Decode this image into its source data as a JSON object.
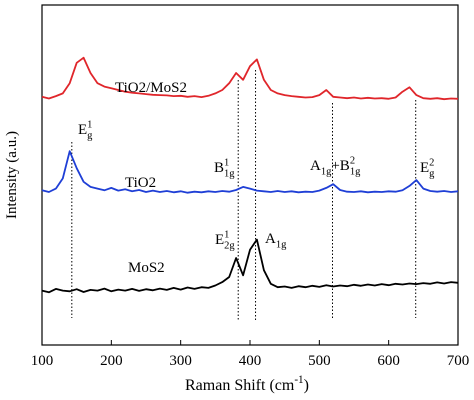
{
  "chart_data": {
    "type": "line",
    "x_label": [
      {
        "text": "Raman Shift (cm"
      },
      {
        "text": "-1",
        "shift": "sup"
      },
      {
        "text": ")"
      }
    ],
    "y_label": "Intensity (a.u.)",
    "x": [
      100,
      110,
      120,
      130,
      140,
      150,
      160,
      170,
      180,
      190,
      200,
      210,
      220,
      230,
      240,
      250,
      260,
      270,
      280,
      290,
      300,
      310,
      320,
      330,
      340,
      350,
      360,
      370,
      380,
      390,
      400,
      410,
      420,
      430,
      440,
      450,
      460,
      470,
      480,
      490,
      500,
      510,
      520,
      530,
      540,
      550,
      560,
      570,
      580,
      590,
      600,
      610,
      620,
      630,
      640,
      650,
      660,
      670,
      680,
      690,
      700
    ],
    "series": [
      {
        "name": "TiO2/MoS2",
        "color": "#e0262b",
        "values": [
          73,
          72.5,
          73.2,
          74,
          77,
          83,
          84.5,
          80,
          77,
          76,
          75.5,
          75,
          74.5,
          74.2,
          74,
          73.8,
          73.6,
          73.5,
          73.4,
          73.2,
          73.3,
          73,
          73.2,
          72.9,
          73.3,
          74,
          75,
          77,
          80,
          78,
          82,
          84,
          78,
          75,
          74,
          73.5,
          73.2,
          73,
          72.8,
          72.9,
          73.5,
          75,
          73,
          72.8,
          72.6,
          72.8,
          72.5,
          72.7,
          72.5,
          72.6,
          72.4,
          72.8,
          74.5,
          75.8,
          73.5,
          72.6,
          72.4,
          72.6,
          72.3,
          72.5,
          72.4
        ]
      },
      {
        "name": "TiO2",
        "color": "#1f3fd6",
        "values": [
          45.5,
          45,
          46,
          49,
          57,
          52,
          48,
          46.5,
          46,
          45.5,
          46.2,
          45.4,
          45.8,
          45.2,
          45.6,
          45,
          45.4,
          45,
          45.3,
          44.9,
          45.2,
          44.8,
          45.1,
          44.9,
          45.2,
          45,
          45.3,
          45.1,
          45.6,
          46.5,
          46,
          45.4,
          45.2,
          45,
          45.3,
          45,
          45.2,
          44.9,
          45.1,
          45,
          45.4,
          46.2,
          47.3,
          45.6,
          45.1,
          45,
          45.2,
          44.9,
          45.1,
          45,
          45.2,
          45.1,
          45.5,
          46.8,
          48.5,
          46,
          45.3,
          45.1,
          45.3,
          45,
          45.2
        ]
      },
      {
        "name": "MoS2",
        "color": "#000000",
        "values": [
          16,
          15.5,
          16.5,
          16,
          15.8,
          16.4,
          15.6,
          16.2,
          16,
          16.6,
          15.8,
          16.3,
          16,
          16.5,
          15.9,
          16.4,
          16.1,
          16.6,
          16.2,
          16.8,
          16.3,
          16.9,
          16.5,
          17,
          16.8,
          17.5,
          18.5,
          20,
          25.6,
          20.5,
          28,
          31,
          22,
          18,
          17,
          17.2,
          16.8,
          17.3,
          17,
          17.4,
          17.1,
          17.6,
          17.2,
          17.5,
          17.3,
          17.7,
          17.4,
          17.8,
          17.5,
          17.9,
          17.6,
          18,
          17.8,
          18.1,
          17.9,
          18.2,
          18,
          18.4,
          18.1,
          18.5,
          18.3
        ]
      }
    ],
    "xlim": [
      100,
      700
    ],
    "xticks": [
      100,
      200,
      300,
      400,
      500,
      600,
      700
    ],
    "ylim": [
      0,
      100
    ],
    "reference_lines": [
      143,
      383,
      408,
      519,
      639
    ],
    "annotations": [
      [
        {
          "text": "E"
        },
        {
          "text": "g",
          "shift": "sub"
        },
        {
          "text": "1",
          "shift": "sup"
        }
      ],
      [
        {
          "text": "B"
        },
        {
          "text": "1g",
          "shift": "sub"
        },
        {
          "text": "1",
          "shift": "sup"
        }
      ],
      [
        {
          "text": "A"
        },
        {
          "text": "1g",
          "shift": "sub"
        },
        {
          "text": "+B"
        },
        {
          "text": "1g",
          "shift": "sub"
        },
        {
          "text": "2",
          "shift": "sup"
        }
      ],
      [
        {
          "text": "E"
        },
        {
          "text": "g",
          "shift": "sub"
        },
        {
          "text": "2",
          "shift": "sup"
        }
      ],
      [
        {
          "text": "E"
        },
        {
          "text": "2g",
          "shift": "sub"
        },
        {
          "text": "1",
          "shift": "sup"
        }
      ],
      [
        {
          "text": "A"
        },
        {
          "text": "1g",
          "shift": "sub"
        }
      ]
    ]
  }
}
